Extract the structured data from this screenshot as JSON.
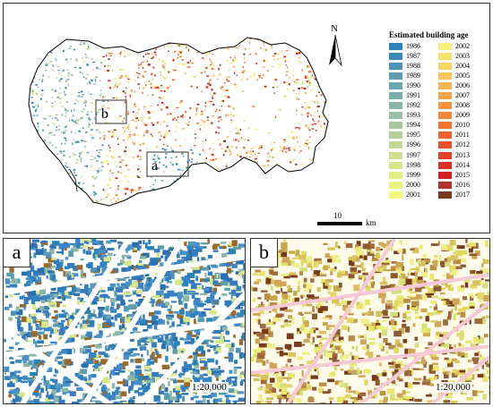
{
  "overview": {
    "north_label": "N",
    "scale_value": "10",
    "scale_unit": "km",
    "inset_labels": [
      "a",
      "b"
    ]
  },
  "legend": {
    "title": "Estimated building age",
    "columns": [
      [
        {
          "year": "1986",
          "color": "#2b83ba"
        },
        {
          "year": "1987",
          "color": "#3a8bb8"
        },
        {
          "year": "1988",
          "color": "#4a94b6"
        },
        {
          "year": "1989",
          "color": "#5a9db3"
        },
        {
          "year": "1990",
          "color": "#6aa6b0"
        },
        {
          "year": "1991",
          "color": "#7aaeac"
        },
        {
          "year": "1992",
          "color": "#8ab7a8"
        },
        {
          "year": "1993",
          "color": "#99bfa4"
        },
        {
          "year": "1994",
          "color": "#a7c79f"
        },
        {
          "year": "1995",
          "color": "#b4cf9a"
        },
        {
          "year": "1996",
          "color": "#c1d795"
        },
        {
          "year": "1997",
          "color": "#cddf90"
        },
        {
          "year": "1998",
          "color": "#d8e68a"
        },
        {
          "year": "1999",
          "color": "#e2ed84"
        },
        {
          "year": "2000",
          "color": "#ebf47e"
        },
        {
          "year": "2001",
          "color": "#f4fa78"
        }
      ],
      [
        {
          "year": "2002",
          "color": "#f7f07a"
        },
        {
          "year": "2003",
          "color": "#f8e26e"
        },
        {
          "year": "2004",
          "color": "#f9d363"
        },
        {
          "year": "2005",
          "color": "#fac459"
        },
        {
          "year": "2006",
          "color": "#fab450"
        },
        {
          "year": "2007",
          "color": "#f9a447"
        },
        {
          "year": "2008",
          "color": "#f8943f"
        },
        {
          "year": "2009",
          "color": "#f68338"
        },
        {
          "year": "2010",
          "color": "#f37232"
        },
        {
          "year": "2011",
          "color": "#ef612d"
        },
        {
          "year": "2012",
          "color": "#ea5029"
        },
        {
          "year": "2013",
          "color": "#e43f26"
        },
        {
          "year": "2014",
          "color": "#dd2e24"
        },
        {
          "year": "2015",
          "color": "#d41e22"
        },
        {
          "year": "2016",
          "color": "#b8302a"
        },
        {
          "year": "2017",
          "color": "#7a3a1c"
        }
      ]
    ]
  },
  "panels": [
    {
      "letter": "a",
      "scale": "1:20,000"
    },
    {
      "letter": "b",
      "scale": "1:20,000"
    }
  ]
}
